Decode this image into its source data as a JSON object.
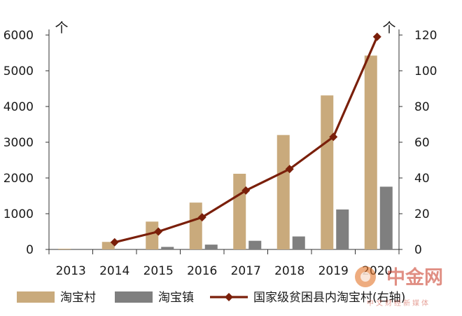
{
  "chart_data": {
    "type": "bar",
    "categories": [
      "2013",
      "2014",
      "2015",
      "2016",
      "2017",
      "2018",
      "2019",
      "2020"
    ],
    "series": [
      {
        "name": "淘宝村",
        "type": "bar",
        "axis": "left",
        "color": "#c9aa7c",
        "values": [
          20,
          211,
          779,
          1311,
          2118,
          3202,
          4310,
          5425
        ]
      },
      {
        "name": "淘宝镇",
        "type": "bar",
        "axis": "left",
        "color": "#7f7f7f",
        "values": [
          0,
          0,
          71,
          135,
          242,
          363,
          1118,
          1756
        ]
      },
      {
        "name": "国家级贫困县内淘宝村(右轴)",
        "type": "line",
        "axis": "right",
        "color": "#7a1f0a",
        "values": [
          null,
          4,
          10,
          18,
          33,
          45,
          63,
          119
        ]
      }
    ],
    "y_left": {
      "unit": "个",
      "lim": [
        0,
        6000
      ],
      "ticks": [
        0,
        1000,
        2000,
        3000,
        4000,
        5000,
        6000
      ]
    },
    "y_right": {
      "unit": "个",
      "lim": [
        0,
        120
      ],
      "ticks": [
        0,
        20,
        40,
        60,
        80,
        100,
        120
      ]
    },
    "grid": false,
    "legend_position": "bottom"
  },
  "watermark": {
    "title": "中金网",
    "subtitle": "中文财经新媒体"
  }
}
